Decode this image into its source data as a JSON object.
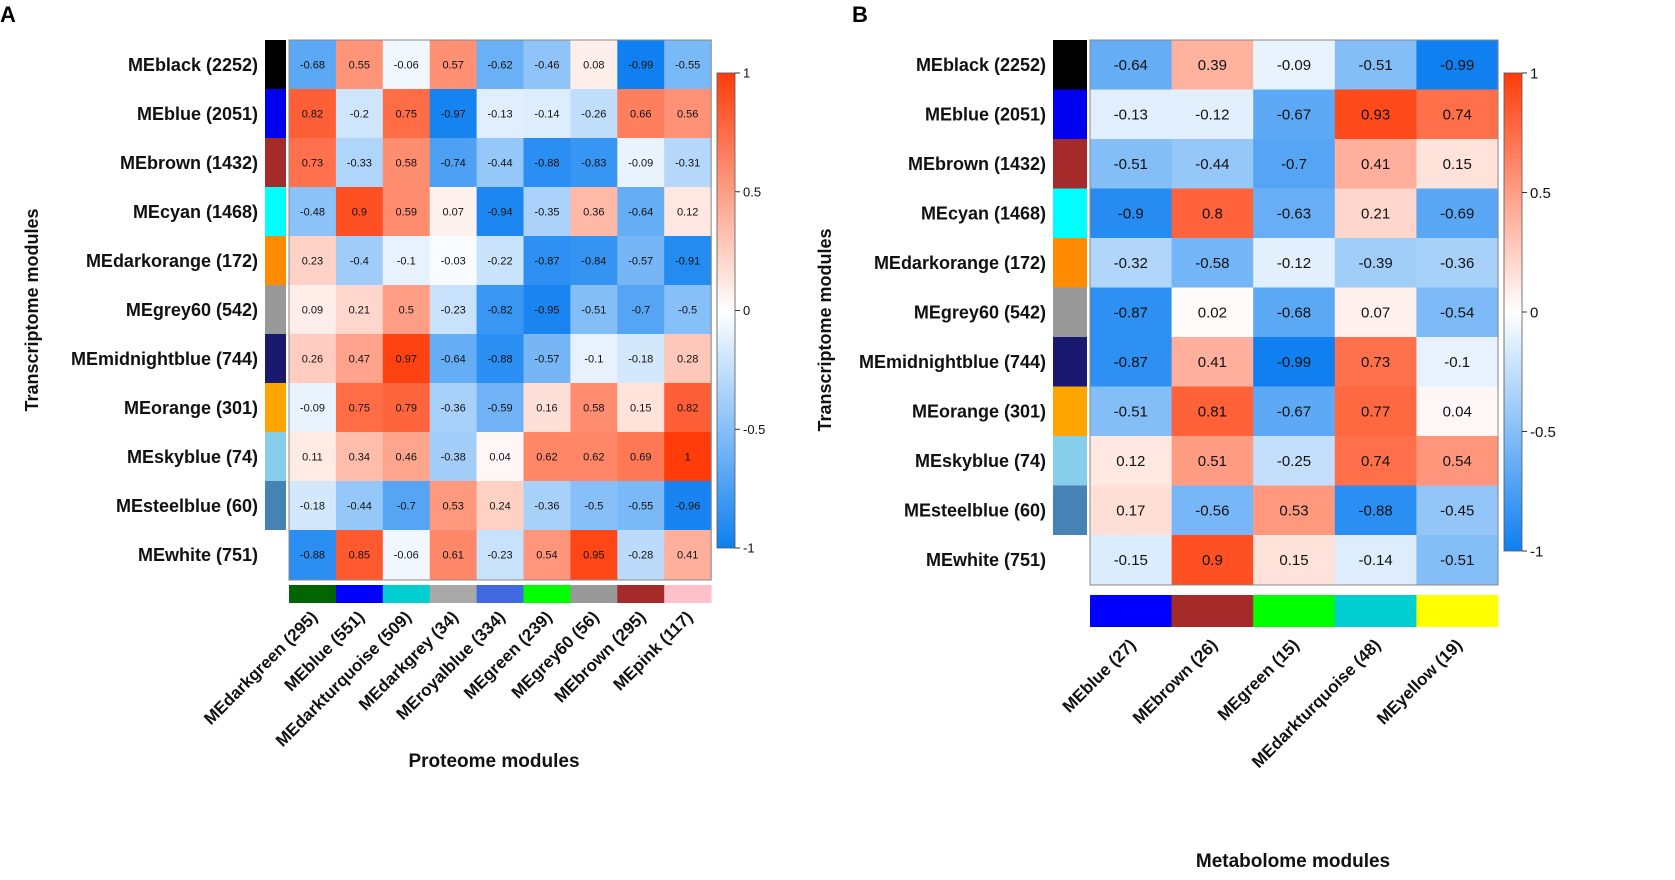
{
  "chart_data": [
    {
      "type": "heatmap",
      "panel_label": "A",
      "ylabel": "Transcriptome modules",
      "xlabel": "Proteome modules",
      "rows": [
        "MEblack (2252)",
        "MEblue (2051)",
        "MEbrown (1432)",
        "MEcyan (1468)",
        "MEdarkorange (172)",
        "MEgrey60 (542)",
        "MEmidnightblue (744)",
        "MEorange (301)",
        "MEskyblue (74)",
        "MEsteelblue (60)",
        "MEwhite (751)"
      ],
      "row_colors": [
        "#000000",
        "#0000ee",
        "#a52a2a",
        "#00ffff",
        "#ff8c00",
        "#999999",
        "#191970",
        "#ffa500",
        "#87ceeb",
        "#4682b4",
        "#ffffff"
      ],
      "columns": [
        "MEdarkgreen (295)",
        "MEblue (551)",
        "MEdarkturquoise (509)",
        "MEdarkgrey (34)",
        "MEroyalblue (334)",
        "MEgreen (239)",
        "MEgrey60 (56)",
        "MEbrown (295)",
        "MEpink (117)"
      ],
      "column_colors": [
        "#006400",
        "#0000ff",
        "#00ced1",
        "#a9a9a9",
        "#4169e1",
        "#00ff00",
        "#999999",
        "#a52a2a",
        "#ffc0cb"
      ],
      "values": [
        [
          -0.68,
          0.55,
          -0.06,
          0.57,
          -0.62,
          -0.46,
          0.08,
          -0.99,
          -0.55
        ],
        [
          0.82,
          -0.2,
          0.75,
          -0.97,
          -0.13,
          -0.14,
          -0.26,
          0.66,
          0.56
        ],
        [
          0.73,
          -0.33,
          0.58,
          -0.74,
          -0.44,
          -0.88,
          -0.83,
          -0.09,
          -0.31
        ],
        [
          -0.48,
          0.9,
          0.59,
          0.07,
          -0.94,
          -0.35,
          0.36,
          -0.64,
          0.12
        ],
        [
          0.23,
          -0.4,
          -0.1,
          -0.03,
          -0.22,
          -0.87,
          -0.84,
          -0.57,
          -0.91
        ],
        [
          0.09,
          0.21,
          0.5,
          -0.23,
          -0.82,
          -0.95,
          -0.51,
          -0.7,
          -0.5
        ],
        [
          0.26,
          0.47,
          0.97,
          -0.64,
          -0.88,
          -0.57,
          -0.1,
          -0.18,
          0.28
        ],
        [
          -0.09,
          0.75,
          0.79,
          -0.36,
          -0.59,
          0.16,
          0.58,
          0.15,
          0.82
        ],
        [
          0.11,
          0.34,
          0.46,
          -0.38,
          0.04,
          0.62,
          0.62,
          0.69,
          1
        ],
        [
          -0.18,
          -0.44,
          -0.7,
          0.53,
          0.24,
          -0.36,
          -0.5,
          -0.55,
          -0.96
        ],
        [
          -0.88,
          0.85,
          -0.06,
          0.61,
          -0.23,
          0.54,
          0.95,
          -0.28,
          0.41
        ]
      ],
      "scale": {
        "min": -1,
        "max": 1,
        "ticks": [
          "1",
          "0.5",
          "0",
          "-0.5",
          "-1"
        ]
      }
    },
    {
      "type": "heatmap",
      "panel_label": "B",
      "ylabel": "Transcriptome modules",
      "xlabel": "Metabolome modules",
      "rows": [
        "MEblack (2252)",
        "MEblue (2051)",
        "MEbrown (1432)",
        "MEcyan (1468)",
        "MEdarkorange (172)",
        "MEgrey60 (542)",
        "MEmidnightblue (744)",
        "MEorange (301)",
        "MEskyblue (74)",
        "MEsteelblue (60)",
        "MEwhite (751)"
      ],
      "row_colors": [
        "#000000",
        "#0000ee",
        "#a52a2a",
        "#00ffff",
        "#ff8c00",
        "#999999",
        "#191970",
        "#ffa500",
        "#87ceeb",
        "#4682b4",
        "#ffffff"
      ],
      "columns": [
        "MEblue (27)",
        "MEbrown (26)",
        "MEgreen (15)",
        "MEdarkturquoise (48)",
        "MEyellow (19)"
      ],
      "column_colors": [
        "#0000ff",
        "#a52a2a",
        "#00ff00",
        "#00ced1",
        "#ffff00"
      ],
      "values": [
        [
          -0.64,
          0.39,
          -0.09,
          -0.51,
          -0.99
        ],
        [
          -0.13,
          -0.12,
          -0.67,
          0.93,
          0.74
        ],
        [
          -0.51,
          -0.44,
          -0.7,
          0.41,
          0.15
        ],
        [
          -0.9,
          0.8,
          -0.63,
          0.21,
          -0.69
        ],
        [
          -0.32,
          -0.58,
          -0.12,
          -0.39,
          -0.36
        ],
        [
          -0.87,
          0.02,
          -0.68,
          0.07,
          -0.54
        ],
        [
          -0.87,
          0.41,
          -0.99,
          0.73,
          -0.1
        ],
        [
          -0.51,
          0.81,
          -0.67,
          0.77,
          0.04
        ],
        [
          0.12,
          0.51,
          -0.25,
          0.74,
          0.54
        ],
        [
          0.17,
          -0.56,
          0.53,
          -0.88,
          -0.45
        ],
        [
          -0.15,
          0.9,
          0.15,
          -0.14,
          -0.51
        ]
      ],
      "scale": {
        "min": -1,
        "max": 1,
        "ticks": [
          "1",
          "0.5",
          "0",
          "-0.5",
          "-1"
        ]
      }
    }
  ],
  "palette": {
    "neg": "#0e7ff0",
    "mid": "#ffffff",
    "pos": "#ff3c0a",
    "frame": "#888888"
  }
}
